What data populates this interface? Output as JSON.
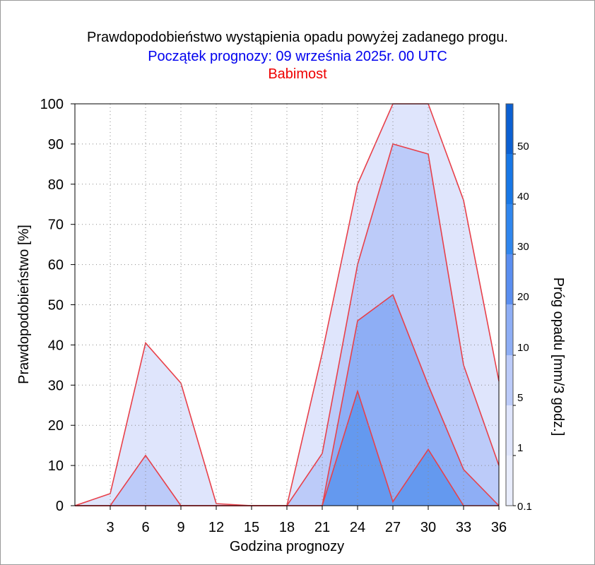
{
  "title": "Prawdopodobieństwo wystąpienia opadu powyżej zadanego progu.",
  "subtitle": "Początek prognozy: 09 września 2025r. 00 UTC",
  "location": "Babimost",
  "colors": {
    "title": "#000000",
    "subtitle": "#0000ee",
    "location": "#ee0000",
    "outline": "#e8404a"
  },
  "chart_data": {
    "type": "area",
    "xlabel": "Godzina prognozy",
    "ylabel": "Prawdopodobieństwo [%]",
    "xlim": [
      0,
      36
    ],
    "ylim": [
      0,
      100
    ],
    "x_ticks": [
      3,
      6,
      9,
      12,
      15,
      18,
      21,
      24,
      27,
      30,
      33,
      36
    ],
    "y_ticks": [
      0,
      10,
      20,
      30,
      40,
      50,
      60,
      70,
      80,
      90,
      100
    ],
    "grid": true,
    "x": [
      0,
      3,
      6,
      9,
      12,
      15,
      18,
      21,
      24,
      27,
      30,
      33,
      36
    ],
    "series": [
      {
        "name": "0.1",
        "color": "#dfe5fc",
        "values": [
          0,
          3,
          40.5,
          30.5,
          0.5,
          0,
          0,
          38,
          80,
          100,
          100,
          76,
          31
        ]
      },
      {
        "name": "1",
        "color": "#bccbf9",
        "values": [
          0,
          0,
          12.5,
          0,
          0,
          0,
          0,
          13,
          60,
          90,
          87.5,
          35,
          10
        ]
      },
      {
        "name": "5",
        "color": "#8eaef5",
        "values": [
          0,
          0,
          0,
          0,
          0,
          0,
          0,
          0,
          46,
          52.5,
          30,
          9,
          0
        ]
      },
      {
        "name": "10",
        "color": "#6499ef",
        "values": [
          0,
          0,
          0,
          0,
          0,
          0,
          0,
          0,
          28.5,
          1,
          14,
          0,
          0
        ]
      }
    ],
    "colorbar": {
      "label": "Próg opadu [mm/3 godz.]",
      "ticks": [
        "0.1",
        "1",
        "5",
        "10",
        "20",
        "30",
        "40",
        "50"
      ],
      "colors": [
        "#e9edfc",
        "#dfe5fc",
        "#bccbf9",
        "#8eaef5",
        "#5a8ef0",
        "#2f86ee",
        "#1777e6",
        "#0b60d2",
        "#0a4bb8"
      ]
    }
  }
}
